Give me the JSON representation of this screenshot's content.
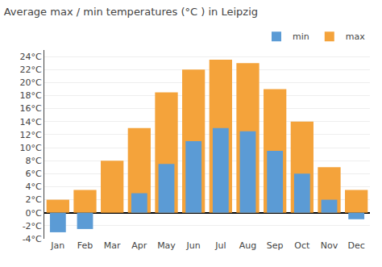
{
  "chart_data": {
    "type": "bar",
    "title": "Average max / min temperatures (°C ) in Leipzig",
    "categories": [
      "Jan",
      "Feb",
      "Mar",
      "Apr",
      "May",
      "Jun",
      "Jul",
      "Aug",
      "Sep",
      "Oct",
      "Nov",
      "Dec"
    ],
    "series": [
      {
        "name": "min",
        "color": "#5B9BD5",
        "values": [
          -3,
          -2.5,
          0,
          3,
          7.5,
          11,
          13,
          12.5,
          9.5,
          6,
          2,
          -1
        ]
      },
      {
        "name": "max",
        "color": "#F4A33B",
        "values": [
          2,
          3.5,
          8,
          13,
          18.5,
          22,
          23.5,
          23,
          19,
          14,
          7,
          3.5
        ]
      }
    ],
    "ylim": [
      -4,
      25
    ],
    "yticks": [
      {
        "value": -4,
        "label": "-4°C"
      },
      {
        "value": -2,
        "label": "-2°C"
      },
      {
        "value": 0,
        "label": "0°C"
      },
      {
        "value": 2,
        "label": "2°C"
      },
      {
        "value": 4,
        "label": "4°C"
      },
      {
        "value": 6,
        "label": "6°C"
      },
      {
        "value": 8,
        "label": "8°C"
      },
      {
        "value": 10,
        "label": "10°C"
      },
      {
        "value": 12,
        "label": "12°C"
      },
      {
        "value": 14,
        "label": "14°C"
      },
      {
        "value": 16,
        "label": "16°C"
      },
      {
        "value": 18,
        "label": "18°C"
      },
      {
        "value": 20,
        "label": "20°C"
      },
      {
        "value": 22,
        "label": "22°C"
      },
      {
        "value": 24,
        "label": "24°C"
      }
    ],
    "grid": true,
    "legend": "upper right"
  }
}
